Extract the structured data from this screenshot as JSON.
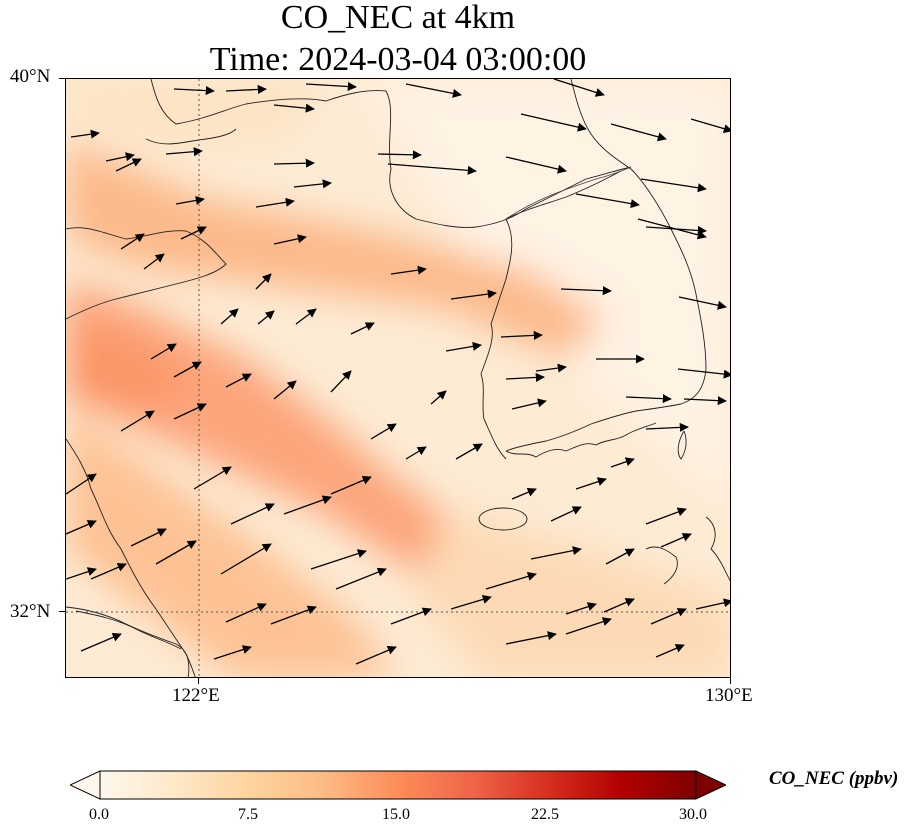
{
  "title": {
    "line1": "CO_NEC at 4km",
    "line2": "Time: 2024-03-04 03:00:00"
  },
  "axes": {
    "lat_labels": [
      "40°N",
      "32°N"
    ],
    "lon_labels": [
      "122°E",
      "130°E"
    ],
    "lat_range": [
      31,
      40
    ],
    "lon_range": [
      120,
      130
    ],
    "gridlines": "dotted at 122°E and 32°N"
  },
  "colorbar": {
    "label": "CO_NEC (ppbv)",
    "ticks": [
      "0.0",
      "7.5",
      "15.0",
      "22.5",
      "30.0"
    ],
    "range": [
      0,
      30
    ],
    "colormap": "OrRd",
    "extend": "both",
    "colors": [
      "#fff7ec",
      "#fee8c8",
      "#fdd49e",
      "#fdbb84",
      "#fc8d59",
      "#ef6548",
      "#d7301f",
      "#b30000",
      "#7f0000"
    ]
  },
  "field": {
    "description_colors": {
      "background": "#fdebd4",
      "plume_strong": "#fb9a6c",
      "plume_medium": "#fdc69a",
      "plume_light": "#fde0bd"
    }
  },
  "wind": {
    "arrow_color": "#000000"
  },
  "coast_color": "#222222"
}
